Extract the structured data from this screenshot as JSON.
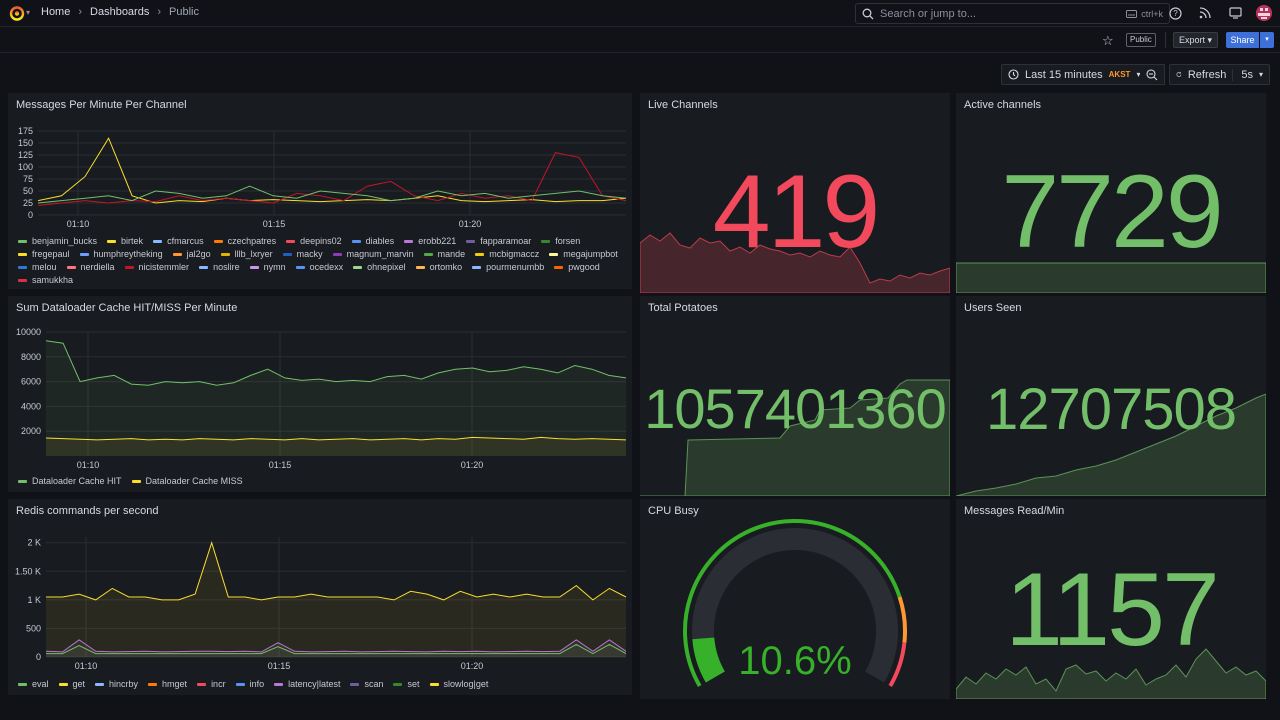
{
  "nav": {
    "breadcrumb": [
      "Home",
      "Dashboards",
      "Public"
    ],
    "search_placeholder": "Search or jump to...",
    "search_shortcut": "ctrl+k"
  },
  "toolbar": {
    "public_badge": "Public",
    "export_label": "Export",
    "share_label": "Share",
    "time_range": "Last 15 minutes",
    "timezone": "AKST",
    "refresh_label": "Refresh",
    "refresh_interval": "5s"
  },
  "colors": {
    "green": "#73bf69",
    "red": "#f2495c",
    "yellow": "#fade2a",
    "blue": "#5794f2"
  },
  "panels": {
    "messages": {
      "title": "Messages Per Minute Per Channel",
      "legend": [
        {
          "name": "benjamin_bucks",
          "color": "#73bf69"
        },
        {
          "name": "birtek",
          "color": "#fade2a"
        },
        {
          "name": "cfmarcus",
          "color": "#8ab8ff"
        },
        {
          "name": "czechpatres",
          "color": "#ff780a"
        },
        {
          "name": "deepins02",
          "color": "#f2495c"
        },
        {
          "name": "diables",
          "color": "#5794f2"
        },
        {
          "name": "erobb221",
          "color": "#b877d9"
        },
        {
          "name": "fapparamoar",
          "color": "#705da0"
        },
        {
          "name": "forsen",
          "color": "#37872d"
        },
        {
          "name": "fregepaul",
          "color": "#fade2a"
        },
        {
          "name": "humphreytheking",
          "color": "#6e9fff"
        },
        {
          "name": "jal2go",
          "color": "#ff9830"
        },
        {
          "name": "lllb_lxryer",
          "color": "#e0b400"
        },
        {
          "name": "macky",
          "color": "#1f60c4"
        },
        {
          "name": "magnum_marvin",
          "color": "#8f3bb8"
        },
        {
          "name": "mande",
          "color": "#56a64b"
        },
        {
          "name": "mcbigmaccz",
          "color": "#f2cc0c"
        },
        {
          "name": "megajumpbot",
          "color": "#fff899"
        },
        {
          "name": "melou",
          "color": "#3274d9"
        },
        {
          "name": "nerdiella",
          "color": "#ff7383"
        },
        {
          "name": "nicistemmler",
          "color": "#c4162a"
        },
        {
          "name": "noslire",
          "color": "#8ab8ff"
        },
        {
          "name": "nymn",
          "color": "#ca95e5"
        },
        {
          "name": "ocedexx",
          "color": "#5794f2"
        },
        {
          "name": "ohnepixel",
          "color": "#96d98d"
        },
        {
          "name": "ortomko",
          "color": "#ffb357"
        },
        {
          "name": "pourmenumbb",
          "color": "#8ab8ff"
        },
        {
          "name": "pwgood",
          "color": "#fa6400"
        },
        {
          "name": "samukkha",
          "color": "#e02f44"
        }
      ]
    },
    "dataloader": {
      "title": "Sum Dataloader Cache HIT/MISS Per Minute",
      "legend": [
        {
          "name": "Dataloader Cache HIT",
          "color": "#73bf69"
        },
        {
          "name": "Dataloader Cache MISS",
          "color": "#fade2a"
        }
      ]
    },
    "redis": {
      "title": "Redis commands per second",
      "legend": [
        {
          "name": "eval",
          "color": "#73bf69"
        },
        {
          "name": "get",
          "color": "#fade2a"
        },
        {
          "name": "hincrby",
          "color": "#8ab8ff"
        },
        {
          "name": "hmget",
          "color": "#ff780a"
        },
        {
          "name": "incr",
          "color": "#f2495c"
        },
        {
          "name": "info",
          "color": "#5794f2"
        },
        {
          "name": "latency|latest",
          "color": "#b877d9"
        },
        {
          "name": "scan",
          "color": "#705da0"
        },
        {
          "name": "set",
          "color": "#37872d"
        },
        {
          "name": "slowlog|get",
          "color": "#fade2a"
        }
      ]
    },
    "live_channels": {
      "title": "Live Channels",
      "value": "419"
    },
    "active_channels": {
      "title": "Active channels",
      "value": "7729"
    },
    "total_potatoes": {
      "title": "Total Potatoes",
      "value": "1057401360"
    },
    "users_seen": {
      "title": "Users Seen",
      "value": "12707508"
    },
    "cpu_busy": {
      "title": "CPU Busy",
      "value": "10.6%",
      "percent": 10.6
    },
    "messages_read": {
      "title": "Messages Read/Min",
      "value": "1157"
    }
  },
  "chart_data": [
    {
      "type": "line",
      "title": "Messages Per Minute Per Channel",
      "x_ticks": [
        "01:10",
        "01:15",
        "01:20"
      ],
      "y_ticks": [
        "0",
        "25",
        "50",
        "75",
        "100",
        "125",
        "150",
        "175"
      ],
      "ylim": [
        0,
        175
      ],
      "series": [
        {
          "name": "birtek",
          "values": [
            30,
            40,
            80,
            160,
            40,
            25,
            30,
            28,
            35,
            30,
            32,
            30,
            28,
            30,
            32,
            30,
            35,
            40,
            30,
            28,
            30,
            32,
            28,
            30,
            30,
            35
          ]
        },
        {
          "name": "nicistemmler",
          "values": [
            20,
            25,
            30,
            25,
            30,
            28,
            40,
            30,
            35,
            30,
            25,
            45,
            40,
            30,
            60,
            70,
            40,
            30,
            45,
            35,
            40,
            30,
            130,
            120,
            40,
            30
          ]
        },
        {
          "name": "benjamin_bucks",
          "values": [
            25,
            30,
            35,
            40,
            30,
            50,
            45,
            35,
            40,
            60,
            40,
            35,
            50,
            45,
            40,
            30,
            35,
            50,
            40,
            45,
            35,
            40,
            45,
            50,
            40,
            35
          ]
        }
      ]
    },
    {
      "type": "line",
      "title": "Sum Dataloader Cache HIT/MISS Per Minute",
      "x_ticks": [
        "01:10",
        "01:15",
        "01:20"
      ],
      "y_ticks": [
        "2000",
        "4000",
        "6000",
        "8000",
        "10000"
      ],
      "ylim": [
        0,
        10000
      ],
      "series": [
        {
          "name": "Dataloader Cache HIT",
          "values": [
            9300,
            9100,
            6000,
            6300,
            6500,
            5800,
            5700,
            6000,
            5900,
            6000,
            5700,
            5900,
            6500,
            7000,
            6300,
            6100,
            6200,
            6000,
            6100,
            6000,
            6400,
            6500,
            6200,
            6700,
            7000,
            7100,
            6800,
            6900,
            7200,
            7000,
            6700,
            7300,
            7000,
            6500,
            6300
          ]
        },
        {
          "name": "Dataloader Cache MISS",
          "values": [
            1450,
            1400,
            1350,
            1300,
            1350,
            1400,
            1300,
            1350,
            1300,
            1400,
            1350,
            1300,
            1400,
            1350,
            1300,
            1400,
            1300,
            1350,
            1400,
            1300,
            1350,
            1400,
            1300,
            1400,
            1350,
            1500,
            1450,
            1400,
            1350,
            1500,
            1400,
            1350,
            1400,
            1350,
            1300
          ]
        }
      ]
    },
    {
      "type": "line",
      "title": "Redis commands per second",
      "x_ticks": [
        "01:10",
        "01:15",
        "01:20"
      ],
      "y_ticks": [
        "0",
        "500",
        "1 K",
        "1.50 K",
        "2 K"
      ],
      "ylim": [
        0,
        2100
      ],
      "series": [
        {
          "name": "get",
          "values": [
            1050,
            1050,
            1100,
            1000,
            1200,
            1050,
            1050,
            1000,
            1000,
            1100,
            2000,
            1050,
            1050,
            1000,
            1050,
            1050,
            1100,
            1050,
            1050,
            1050,
            1050,
            1000,
            1150,
            1100,
            1000,
            1150,
            1050,
            1100,
            1050,
            1100,
            1050,
            1050,
            1250,
            1000,
            1200,
            1050
          ]
        },
        {
          "name": "latency|latest",
          "values": [
            100,
            90,
            300,
            100,
            90,
            95,
            100,
            90,
            95,
            100,
            100,
            95,
            100,
            90,
            250,
            100,
            90,
            95,
            100,
            90,
            95,
            100,
            95,
            90,
            100,
            95,
            100,
            90,
            95,
            100,
            95,
            100,
            300,
            100,
            300,
            100
          ]
        },
        {
          "name": "eval",
          "values": [
            60,
            60,
            200,
            60,
            60,
            60,
            60,
            60,
            60,
            60,
            60,
            60,
            60,
            60,
            180,
            60,
            60,
            60,
            60,
            60,
            60,
            60,
            60,
            60,
            60,
            60,
            60,
            60,
            60,
            60,
            60,
            60,
            220,
            60,
            220,
            60
          ]
        }
      ]
    }
  ]
}
